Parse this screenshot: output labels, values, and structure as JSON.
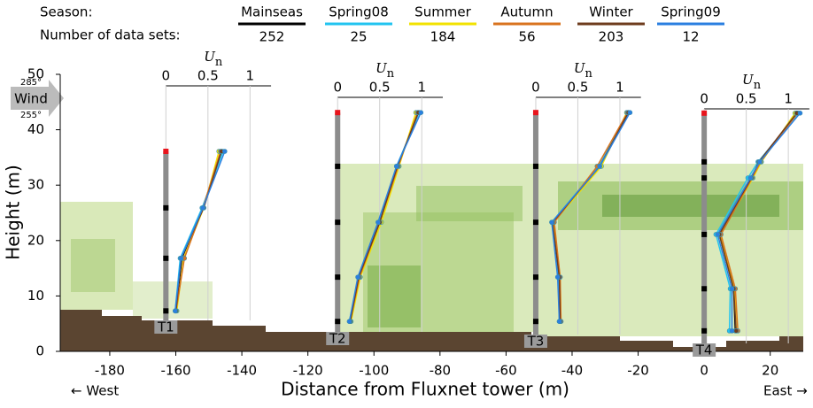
{
  "chart_data": {
    "type": "profile",
    "season_label": "Season:",
    "count_label": "Number of data sets:",
    "series": [
      {
        "name": "Mainseas",
        "color": "#000000",
        "count": 252
      },
      {
        "name": "Spring08",
        "color": "#22c4f0",
        "count": 25
      },
      {
        "name": "Summer",
        "color": "#f2e200",
        "count": 184
      },
      {
        "name": "Autumn",
        "color": "#d9731f",
        "count": 56
      },
      {
        "name": "Winter",
        "color": "#6e3c1e",
        "count": 203
      },
      {
        "name": "Spring09",
        "color": "#2b7fe0",
        "count": 12
      }
    ],
    "xlabel": "Distance from Fluxnet tower (m)",
    "ylabel": "Height (m)",
    "west_label": "← West",
    "east_label": "East →",
    "xlim": [
      -195,
      30
    ],
    "ylim": [
      0,
      50
    ],
    "xticks": [
      -180,
      -160,
      -140,
      -120,
      -100,
      -80,
      -60,
      -40,
      -20,
      0,
      20
    ],
    "yticks": [
      0,
      10,
      20,
      30,
      40,
      50
    ],
    "wind": {
      "label": "Wind",
      "upper": "285°",
      "lower": "255°"
    },
    "un_label": "U",
    "un_sub": "n",
    "un_lim": [
      0,
      1.25
    ],
    "un_ticks": [
      0,
      0.5,
      1
    ],
    "towers": [
      {
        "label": "T1",
        "x": -163,
        "heights": [
          7.3,
          16.8,
          25.9,
          36.1
        ],
        "profiles": [
          [
            0.12,
            0.19,
            0.44,
            0.66
          ],
          [
            0.11,
            0.17,
            0.43,
            0.68
          ],
          [
            0.13,
            0.21,
            0.45,
            0.63
          ],
          [
            0.12,
            0.22,
            0.44,
            0.65
          ],
          [
            0.12,
            0.18,
            0.45,
            0.66
          ],
          [
            0.11,
            0.18,
            0.44,
            0.7
          ]
        ]
      },
      {
        "label": "T2",
        "x": -111,
        "heights": [
          5.4,
          13.4,
          23.3,
          33.4,
          43.1
        ],
        "profiles": [
          [
            0.15,
            0.26,
            0.5,
            0.71,
            0.96
          ],
          [
            0.14,
            0.25,
            0.49,
            0.7,
            0.97
          ],
          [
            0.16,
            0.27,
            0.52,
            0.73,
            0.93
          ],
          [
            0.15,
            0.26,
            0.5,
            0.72,
            0.95
          ],
          [
            0.15,
            0.25,
            0.5,
            0.71,
            0.96
          ],
          [
            0.14,
            0.24,
            0.48,
            0.7,
            0.99
          ]
        ]
      },
      {
        "label": "T3",
        "x": -51,
        "heights": [
          5.4,
          13.4,
          23.3,
          33.4,
          43.1
        ],
        "profiles": [
          [
            0.29,
            0.28,
            0.2,
            0.77,
            1.1
          ],
          [
            0.28,
            0.27,
            0.19,
            0.75,
            1.1
          ],
          [
            0.3,
            0.29,
            0.21,
            0.78,
            1.08
          ],
          [
            0.3,
            0.29,
            0.22,
            0.73,
            1.09
          ],
          [
            0.29,
            0.28,
            0.2,
            0.76,
            1.1
          ],
          [
            0.28,
            0.26,
            0.19,
            0.76,
            1.12
          ]
        ]
      },
      {
        "label": "T4",
        "x": 0,
        "heights": [
          3.7,
          11.3,
          21.1,
          31.3,
          34.2,
          43.0
        ],
        "profiles": [
          [
            0.37,
            0.35,
            0.18,
            0.56,
            0.66,
            1.1
          ],
          [
            0.3,
            0.31,
            0.14,
            0.52,
            0.64,
            1.12
          ],
          [
            0.38,
            0.36,
            0.19,
            0.58,
            0.68,
            1.08
          ],
          [
            0.4,
            0.37,
            0.2,
            0.57,
            0.67,
            1.11
          ],
          [
            0.38,
            0.35,
            0.18,
            0.56,
            0.65,
            1.1
          ],
          [
            0.33,
            0.33,
            0.16,
            0.55,
            0.66,
            1.14
          ]
        ]
      }
    ]
  }
}
